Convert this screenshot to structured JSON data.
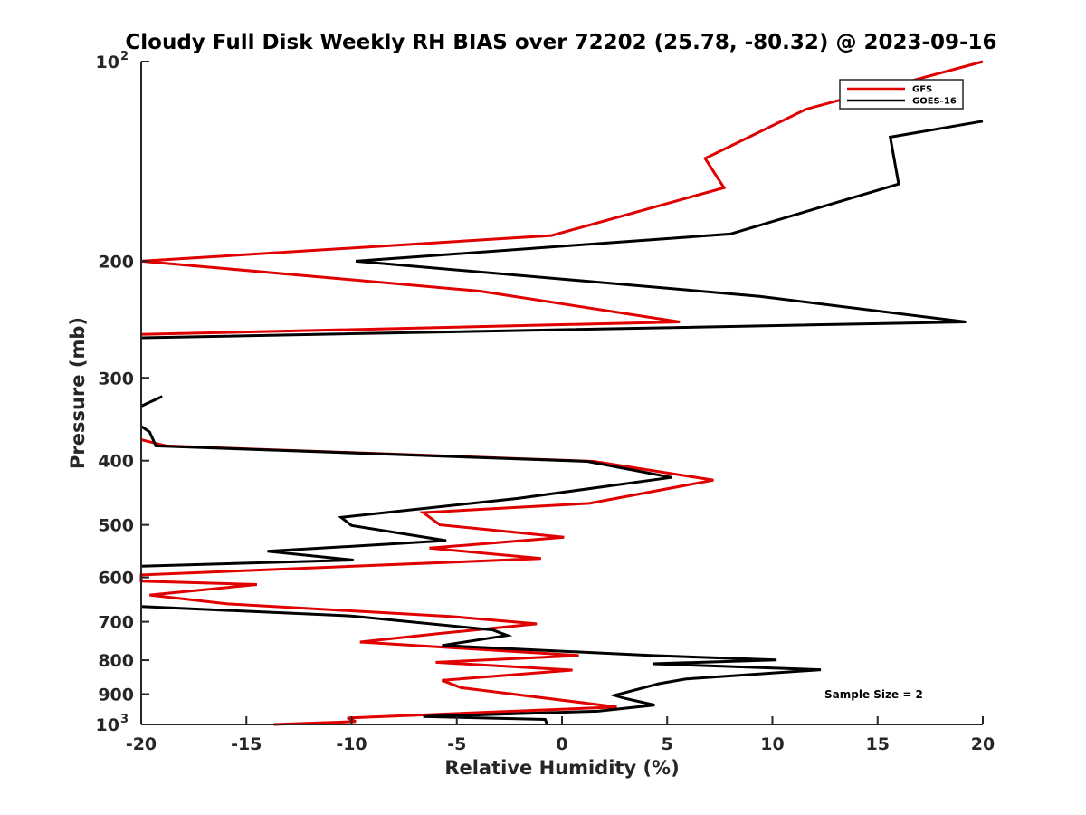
{
  "chart_data": {
    "type": "line",
    "title": "Cloudy Full Disk Weekly RH BIAS over 72202 (25.78, -80.32) @ 2023-09-16",
    "xlabel": "Relative Humidity (%)",
    "ylabel": "Pressure (mb)",
    "xlim": [
      -20,
      20
    ],
    "ylim": [
      100,
      1000
    ],
    "yscale": "log",
    "y_reversed": true,
    "grid": false,
    "legend_position": "top-right",
    "x_ticks": [
      "-20",
      "-15",
      "-10",
      "-5",
      "0",
      "5",
      "10",
      "15",
      "20"
    ],
    "y_ticks": [
      {
        "value": 100,
        "base": "10",
        "exp": "2"
      },
      {
        "value": 200,
        "label": "200"
      },
      {
        "value": 300,
        "label": "300"
      },
      {
        "value": 400,
        "label": "400"
      },
      {
        "value": 500,
        "label": "500"
      },
      {
        "value": 600,
        "label": "600"
      },
      {
        "value": 700,
        "label": "700"
      },
      {
        "value": 800,
        "label": "800"
      },
      {
        "value": 900,
        "label": "900"
      },
      {
        "value": 1000,
        "base": "10",
        "exp": "3"
      }
    ],
    "annotation": "Sample Size = 2",
    "series": [
      {
        "name": "GFS",
        "color": "#e00000",
        "points": [
          [
            20.0,
            100
          ],
          [
            11.6,
            118
          ],
          [
            6.8,
            140
          ],
          [
            7.7,
            155
          ],
          [
            -0.5,
            183
          ],
          [
            -20.0,
            200
          ],
          [
            -3.9,
            222
          ],
          [
            5.6,
            247
          ],
          [
            -20.0,
            258
          ],
          [
            null,
            null
          ],
          [
            -20.0,
            372
          ],
          [
            -18.8,
            380
          ],
          [
            1.5,
            401
          ],
          [
            7.2,
            428
          ],
          [
            1.3,
            464
          ],
          [
            -6.6,
            479
          ],
          [
            -5.8,
            500
          ],
          [
            0.1,
            522
          ],
          [
            -6.3,
            542
          ],
          [
            -1.0,
            562
          ],
          [
            -20.0,
            595
          ],
          [
            -20.0,
            608
          ],
          [
            -14.5,
            615
          ],
          [
            -19.6,
            638
          ],
          [
            -15.9,
            658
          ],
          [
            -5.3,
            687
          ],
          [
            -1.2,
            705
          ],
          [
            -5.8,
            729
          ],
          [
            -9.6,
            751
          ],
          [
            0.8,
            787
          ],
          [
            -6.0,
            806
          ],
          [
            0.5,
            828
          ],
          [
            -5.7,
            858
          ],
          [
            -4.8,
            880
          ],
          [
            2.6,
            941
          ],
          [
            -10.2,
            978
          ],
          [
            -9.8,
            990
          ],
          [
            -13.7,
            1000
          ]
        ]
      },
      {
        "name": "GOES-16",
        "color": "#000000",
        "points": [
          [
            20.0,
            123
          ],
          [
            15.6,
            130
          ],
          [
            16.0,
            153
          ],
          [
            8.0,
            182
          ],
          [
            -9.8,
            200
          ],
          [
            9.4,
            226
          ],
          [
            19.2,
            247
          ],
          [
            -20.0,
            261
          ],
          [
            null,
            null
          ],
          [
            -19.0,
            320
          ],
          [
            -20.0,
            331
          ],
          [
            null,
            null
          ],
          [
            -20.0,
            355
          ],
          [
            -19.6,
            362
          ],
          [
            -19.3,
            380
          ],
          [
            1.2,
            401
          ],
          [
            5.2,
            424
          ],
          [
            -2.1,
            456
          ],
          [
            -10.5,
            487
          ],
          [
            -10.0,
            501
          ],
          [
            -5.5,
            528
          ],
          [
            -14.0,
            548
          ],
          [
            -9.9,
            565
          ],
          [
            -20.0,
            577
          ],
          [
            null,
            null
          ],
          [
            -20.0,
            664
          ],
          [
            -10.0,
            686
          ],
          [
            -3.3,
            720
          ],
          [
            -2.6,
            734
          ],
          [
            -5.7,
            760
          ],
          [
            4.3,
            787
          ],
          [
            10.2,
            799
          ],
          [
            4.3,
            810
          ],
          [
            12.3,
            827
          ],
          [
            5.9,
            854
          ],
          [
            4.6,
            868
          ],
          [
            2.5,
            904
          ],
          [
            2.9,
            912
          ],
          [
            4.4,
            935
          ],
          [
            1.7,
            955
          ],
          [
            -6.6,
            973
          ],
          [
            -0.8,
            983
          ],
          [
            -0.7,
            1000
          ]
        ]
      }
    ]
  }
}
